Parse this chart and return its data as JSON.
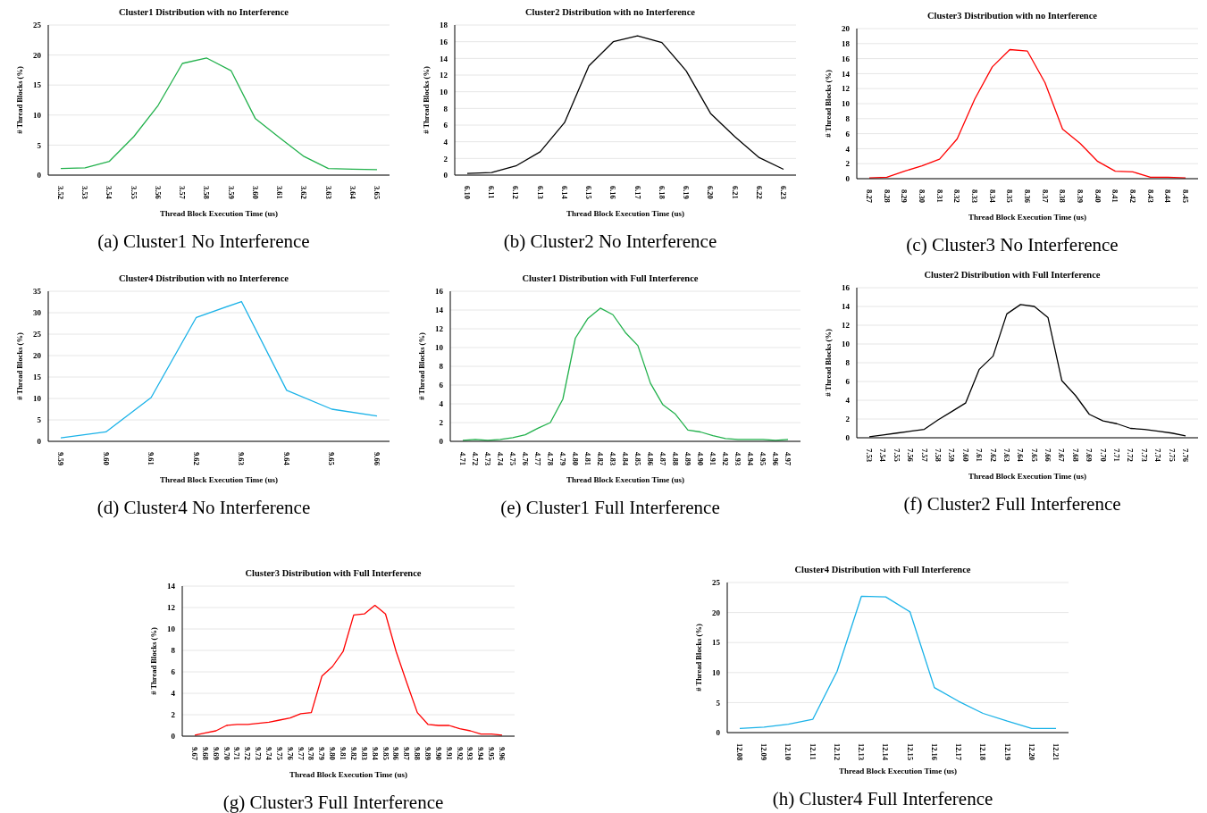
{
  "chart_data": [
    {
      "type": "line",
      "title": "Cluster1 Distribution with no Interference",
      "xlabel": "Thread Block Execution Time (us)",
      "ylabel": "# Thread Blocks (%)",
      "annotations": [
        "(a) Cluster1 No Interference"
      ],
      "categories": [
        "3.52",
        "3.53",
        "3.54",
        "3.55",
        "3.56",
        "3.57",
        "3.58",
        "3.59",
        "3.60",
        "3.61",
        "3.62",
        "3.63",
        "3.64",
        "3.65"
      ],
      "series": [
        {
          "color": "#22b14c",
          "values": [
            1.1,
            1.2,
            2.3,
            6.4,
            11.6,
            18.6,
            19.5,
            17.4,
            9.4,
            6.2,
            3.1,
            1.1,
            1.0,
            0.9
          ]
        }
      ],
      "ylim": [
        0,
        25
      ],
      "yticks": [
        0,
        5,
        10,
        15,
        20,
        25
      ],
      "grid": "y"
    },
    {
      "type": "line",
      "title": "Cluster2 Distribution with no Interference",
      "xlabel": "Thread Block Execution Time (us)",
      "ylabel": "# Thread Blocks (%)",
      "annotations": [
        "(b) Cluster2 No Interference"
      ],
      "categories": [
        "6.10",
        "6.11",
        "6.12",
        "6.13",
        "6.14",
        "6.15",
        "6.16",
        "6.17",
        "6.18",
        "6.19",
        "6.20",
        "6.21",
        "6.22",
        "6.23"
      ],
      "series": [
        {
          "color": "#000000",
          "values": [
            0.2,
            0.3,
            1.1,
            2.8,
            6.3,
            13.1,
            16.0,
            16.7,
            15.9,
            12.5,
            7.4,
            4.6,
            2.1,
            0.7
          ]
        }
      ],
      "ylim": [
        0,
        18
      ],
      "yticks": [
        0,
        2,
        4,
        6,
        8,
        10,
        12,
        14,
        16,
        18
      ],
      "grid": "y"
    },
    {
      "type": "line",
      "title": "Cluster3 Distribution with no Interference",
      "xlabel": "Thread Block Execution Time (us)",
      "ylabel": "# Thread Blocks (%)",
      "annotations": [
        "(c) Cluster3 No Interference"
      ],
      "categories": [
        "8.27",
        "8.28",
        "8.29",
        "8.30",
        "8.31",
        "8.32",
        "8.33",
        "8.34",
        "8.35",
        "8.36",
        "8.37",
        "8.38",
        "8.39",
        "8.40",
        "8.41",
        "8.42",
        "8.43",
        "8.44",
        "8.45"
      ],
      "series": [
        {
          "color": "#ff0000",
          "values": [
            0.1,
            0.2,
            1.0,
            1.7,
            2.6,
            5.3,
            10.6,
            14.9,
            17.2,
            17.0,
            12.8,
            6.6,
            4.7,
            2.3,
            1.0,
            0.9,
            0.2,
            0.2,
            0.1
          ]
        }
      ],
      "ylim": [
        0,
        20
      ],
      "yticks": [
        0,
        2,
        4,
        6,
        8,
        10,
        12,
        14,
        16,
        18,
        20
      ],
      "grid": "y"
    },
    {
      "type": "line",
      "title": "Cluster4 Distribution with no Interference",
      "xlabel": "Thread Block Execution Time (us)",
      "ylabel": "# Thread Blocks (%)",
      "annotations": [
        "(d) Cluster4 No Interference"
      ],
      "categories": [
        "9.59",
        "9.60",
        "9.61",
        "9.62",
        "9.63",
        "9.64",
        "9.65",
        "9.66"
      ],
      "series": [
        {
          "color": "#1ab2e8",
          "values": [
            0.8,
            2.2,
            10.2,
            28.9,
            32.6,
            11.9,
            7.5,
            5.9
          ]
        }
      ],
      "ylim": [
        0,
        35
      ],
      "yticks": [
        0,
        5,
        10,
        15,
        20,
        25,
        30,
        35
      ],
      "grid": "y"
    },
    {
      "type": "line",
      "title": "Cluster1 Distribution with Full Interference",
      "xlabel": "Thread Block Execution Time (us)",
      "ylabel": "# Thread Blocks (%)",
      "annotations": [
        "(e) Cluster1 Full Interference"
      ],
      "categories": [
        "4.71",
        "4.72",
        "4.73",
        "4.74",
        "4.75",
        "4.76",
        "4.77",
        "4.78",
        "4.79",
        "4.80",
        "4.81",
        "4.82",
        "4.83",
        "4.84",
        "4.85",
        "4.86",
        "4.87",
        "4.88",
        "4.89",
        "4.90",
        "4.91",
        "4.92",
        "4.93",
        "4.94",
        "4.95",
        "4.96",
        "4.97"
      ],
      "series": [
        {
          "color": "#22b14c",
          "values": [
            0.1,
            0.2,
            0.1,
            0.2,
            0.4,
            0.7,
            1.4,
            2.0,
            4.5,
            11.0,
            13.1,
            14.2,
            13.5,
            11.6,
            10.2,
            6.2,
            3.9,
            2.9,
            1.2,
            1.0,
            0.6,
            0.3,
            0.2,
            0.2,
            0.2,
            0.1,
            0.2
          ]
        }
      ],
      "ylim": [
        0,
        16
      ],
      "yticks": [
        0,
        2,
        4,
        6,
        8,
        10,
        12,
        14,
        16
      ],
      "grid": "y"
    },
    {
      "type": "line",
      "title": "Cluster2 Distribution with Full Interference",
      "xlabel": "Thread Block Execution Time (us)",
      "ylabel": "# Thread Blocks (%)",
      "annotations": [
        "(f) Cluster2 Full Interference"
      ],
      "categories": [
        "7.53",
        "7.54",
        "7.55",
        "7.56",
        "7.57",
        "7.58",
        "7.59",
        "7.60",
        "7.61",
        "7.62",
        "7.63",
        "7.64",
        "7.65",
        "7.66",
        "7.67",
        "7.68",
        "7.69",
        "7.70",
        "7.71",
        "7.72",
        "7.73",
        "7.74",
        "7.75",
        "7.76"
      ],
      "series": [
        {
          "color": "#000000",
          "values": [
            0.1,
            0.3,
            0.5,
            0.7,
            0.9,
            1.9,
            2.8,
            3.7,
            7.3,
            8.7,
            13.2,
            14.2,
            14.0,
            12.8,
            6.1,
            4.5,
            2.5,
            1.8,
            1.5,
            1.0,
            0.9,
            0.7,
            0.5,
            0.2
          ]
        }
      ],
      "ylim": [
        0,
        16
      ],
      "yticks": [
        0,
        2,
        4,
        6,
        8,
        10,
        12,
        14,
        16
      ],
      "grid": "y"
    },
    {
      "type": "line",
      "title": "Cluster3 Distribution with Full Interference",
      "xlabel": "Thread Block Execution Time (us)",
      "ylabel": "# Thread Blocks (%)",
      "annotations": [
        "(g) Cluster3 Full Interference"
      ],
      "categories": [
        "9.67",
        "9.68",
        "9.69",
        "9.70",
        "9.71",
        "9.72",
        "9.73",
        "9.74",
        "9.75",
        "9.76",
        "9.77",
        "9.78",
        "9.79",
        "9.80",
        "9.81",
        "9.82",
        "9.83",
        "9.84",
        "9.85",
        "9.86",
        "9.87",
        "9.88",
        "9.89",
        "9.90",
        "9.91",
        "9.92",
        "9.93",
        "9.94",
        "9.95",
        "9.96"
      ],
      "series": [
        {
          "color": "#ff0000",
          "values": [
            0.1,
            0.3,
            0.5,
            1.0,
            1.1,
            1.1,
            1.2,
            1.3,
            1.5,
            1.7,
            2.1,
            2.2,
            5.6,
            6.5,
            7.9,
            11.3,
            11.4,
            12.2,
            11.4,
            7.9,
            5.0,
            2.2,
            1.1,
            1.0,
            1.0,
            0.7,
            0.5,
            0.2,
            0.2,
            0.1
          ]
        }
      ],
      "ylim": [
        0,
        14
      ],
      "yticks": [
        0,
        2,
        4,
        6,
        8,
        10,
        12,
        14
      ],
      "grid": "y"
    },
    {
      "type": "line",
      "title": "Cluster4 Distribution with Full Interference",
      "xlabel": "Thread Block Execution Time (us)",
      "ylabel": "# Thread Blocks (%)",
      "annotations": [
        "(h) Cluster4 Full Interference"
      ],
      "categories": [
        "12.08",
        "12.09",
        "12.10",
        "12.11",
        "12.12",
        "12.13",
        "12.14",
        "12.15",
        "12.16",
        "12.17",
        "12.18",
        "12.19",
        "12.20",
        "12.21"
      ],
      "series": [
        {
          "color": "#1ab2e8",
          "values": [
            0.7,
            0.9,
            1.4,
            2.2,
            10.2,
            22.7,
            22.6,
            20.1,
            7.5,
            5.2,
            3.2,
            1.9,
            0.7,
            0.7
          ]
        }
      ],
      "ylim": [
        0,
        25
      ],
      "yticks": [
        0,
        5,
        10,
        15,
        20,
        25
      ],
      "grid": "y"
    }
  ]
}
